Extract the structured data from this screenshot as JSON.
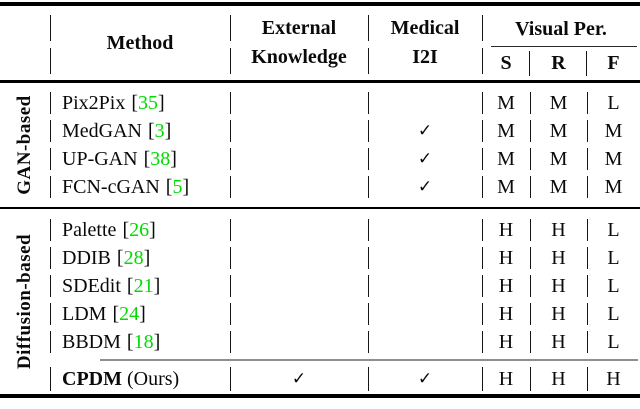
{
  "colors": {
    "citation_green": "#00DC00"
  },
  "cite_open": "[",
  "cite_close": "]",
  "header": {
    "method": "Method",
    "external": [
      "External",
      "Knowledge"
    ],
    "medical": [
      "Medical",
      "I2I"
    ],
    "visual_per": "Visual Per.",
    "sub_columns": [
      "S",
      "R",
      "F"
    ]
  },
  "sections": [
    {
      "label": "GAN-based",
      "rows": [
        {
          "method": "Pix2Pix",
          "cite": "35",
          "external": "",
          "medical": "",
          "s": "M",
          "r": "M",
          "f": "L"
        },
        {
          "method": "MedGAN",
          "cite": "3",
          "external": "",
          "medical": "✓",
          "s": "M",
          "r": "M",
          "f": "M"
        },
        {
          "method": "UP-GAN",
          "cite": "38",
          "external": "",
          "medical": "✓",
          "s": "M",
          "r": "M",
          "f": "M"
        },
        {
          "method": "FCN-cGAN",
          "cite": "5",
          "external": "",
          "medical": "✓",
          "s": "M",
          "r": "M",
          "f": "M"
        }
      ]
    },
    {
      "label": "Diffusion-based",
      "rows": [
        {
          "method": "Palette",
          "cite": "26",
          "external": "",
          "medical": "",
          "s": "H",
          "r": "H",
          "f": "L"
        },
        {
          "method": "DDIB",
          "cite": "28",
          "external": "",
          "medical": "",
          "s": "H",
          "r": "H",
          "f": "L"
        },
        {
          "method": "SDEdit",
          "cite": "21",
          "external": "",
          "medical": "",
          "s": "H",
          "r": "H",
          "f": "L"
        },
        {
          "method": "LDM",
          "cite": "24",
          "external": "",
          "medical": "",
          "s": "H",
          "r": "H",
          "f": "L"
        },
        {
          "method": "BBDM",
          "cite": "18",
          "external": "",
          "medical": "",
          "s": "H",
          "r": "H",
          "f": "L"
        }
      ]
    }
  ],
  "final_row": {
    "method_bold": "CPDM",
    "method_rest": "(Ours)",
    "external": "✓",
    "medical": "✓",
    "s": "H",
    "r": "H",
    "f": "H"
  }
}
